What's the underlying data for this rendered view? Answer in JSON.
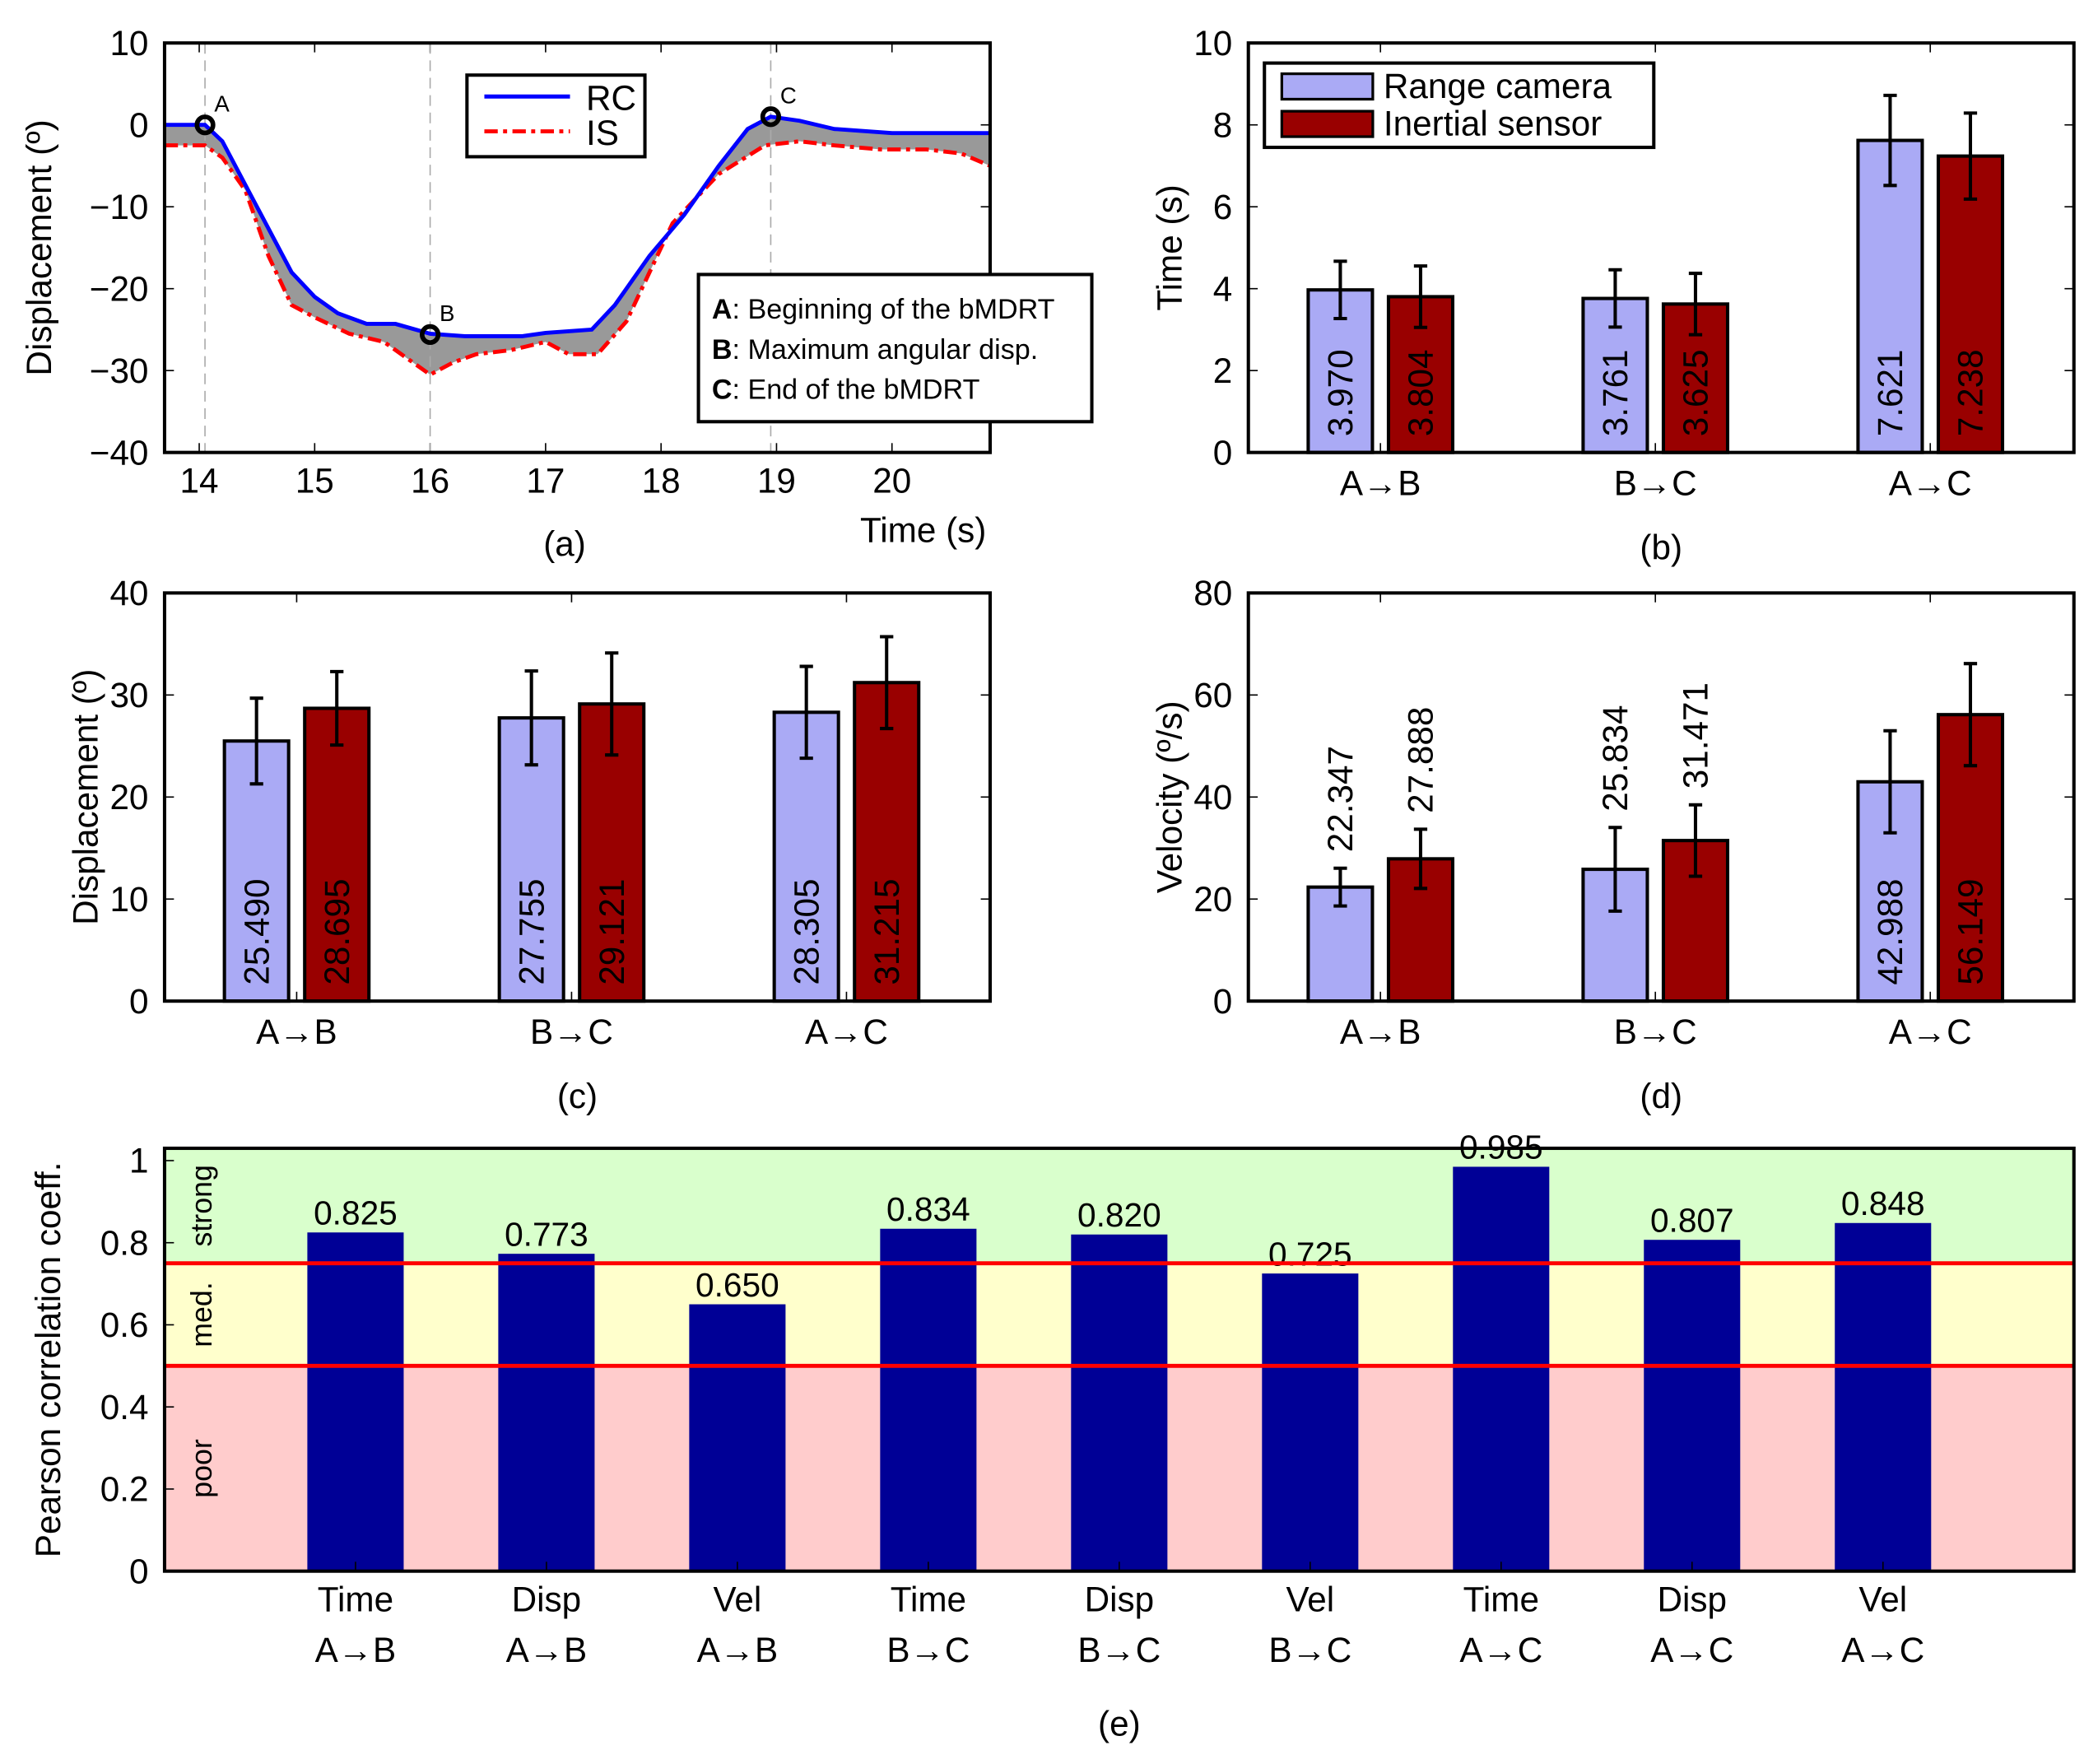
{
  "colors": {
    "rc_line": "#0000ff",
    "is_line": "#ff0000",
    "fill_between": "#999999",
    "rc_bar": "#aaaaf5",
    "is_bar": "#990000",
    "corr_bar": "#000096",
    "strong": "#d9ffcc",
    "medium": "#ffffcc",
    "poor": "#ffcccc",
    "threshold": "#ff0000"
  },
  "chart_data": [
    {
      "id": "a",
      "type": "line",
      "caption": "(a)",
      "xlabel": "Time (s)",
      "ylabel": "Displacement (º)",
      "xlim": [
        13.7,
        20.85
      ],
      "ylim": [
        -40,
        10
      ],
      "xticks": [
        14,
        15,
        16,
        17,
        18,
        19,
        20
      ],
      "yticks": [
        10,
        0,
        -10,
        -20,
        -30,
        -40
      ],
      "legend": {
        "placement": "top-center",
        "entries": [
          "RC",
          "IS"
        ]
      },
      "series": [
        {
          "name": "RC",
          "style": "solid",
          "points": [
            [
              13.7,
              0
            ],
            [
              14.05,
              0
            ],
            [
              14.2,
              -2
            ],
            [
              14.5,
              -10
            ],
            [
              14.8,
              -18
            ],
            [
              15.0,
              -21
            ],
            [
              15.2,
              -23
            ],
            [
              15.45,
              -24.3
            ],
            [
              15.7,
              -24.3
            ],
            [
              16.0,
              -25.5
            ],
            [
              16.3,
              -25.8
            ],
            [
              16.8,
              -25.8
            ],
            [
              17.0,
              -25.4
            ],
            [
              17.4,
              -25
            ],
            [
              17.6,
              -22
            ],
            [
              17.9,
              -16
            ],
            [
              18.2,
              -11
            ],
            [
              18.5,
              -5
            ],
            [
              18.75,
              -0.5
            ],
            [
              18.95,
              1
            ],
            [
              19.2,
              0.5
            ],
            [
              19.5,
              -0.5
            ],
            [
              20.0,
              -1
            ],
            [
              20.85,
              -1
            ]
          ]
        },
        {
          "name": "IS",
          "style": "dashdot",
          "points": [
            [
              13.7,
              -2.5
            ],
            [
              14.05,
              -2.5
            ],
            [
              14.2,
              -4
            ],
            [
              14.4,
              -8
            ],
            [
              14.6,
              -16
            ],
            [
              14.8,
              -22
            ],
            [
              15.0,
              -23.5
            ],
            [
              15.3,
              -25.5
            ],
            [
              15.6,
              -26.5
            ],
            [
              15.85,
              -29
            ],
            [
              16.0,
              -30.5
            ],
            [
              16.2,
              -29
            ],
            [
              16.4,
              -28
            ],
            [
              16.7,
              -27.5
            ],
            [
              17.0,
              -26.5
            ],
            [
              17.2,
              -28
            ],
            [
              17.45,
              -28
            ],
            [
              17.7,
              -24
            ],
            [
              17.9,
              -18
            ],
            [
              18.1,
              -12
            ],
            [
              18.5,
              -6
            ],
            [
              18.9,
              -2.5
            ],
            [
              19.2,
              -2
            ],
            [
              19.5,
              -2.5
            ],
            [
              19.9,
              -3
            ],
            [
              20.3,
              -3
            ],
            [
              20.6,
              -3.5
            ],
            [
              20.85,
              -5
            ]
          ]
        }
      ],
      "markers": [
        {
          "label": "A",
          "x": 14.05,
          "y": 0
        },
        {
          "label": "B",
          "x": 16.0,
          "y": -25.6
        },
        {
          "label": "C",
          "x": 18.95,
          "y": 1
        }
      ],
      "annotations": [
        {
          "key": "A",
          "text": ": Beginning of the bMDRT"
        },
        {
          "key": "B",
          "text": ": Maximum angular disp."
        },
        {
          "key": "C",
          "text": ": End of the bMDRT"
        }
      ]
    },
    {
      "id": "b",
      "type": "bar",
      "caption": "(b)",
      "xlabel": "",
      "ylabel": "Time (s)",
      "ylim": [
        0,
        10
      ],
      "yticks": [
        0,
        2,
        4,
        6,
        8,
        10
      ],
      "categories": [
        "A→B",
        "B→C",
        "A→C"
      ],
      "legend": {
        "placement": "top-left",
        "entries": [
          "Range camera",
          "Inertial sensor"
        ]
      },
      "series": [
        {
          "name": "Range camera",
          "values": [
            3.97,
            3.761,
            7.621
          ],
          "errors": [
            0.7,
            0.7,
            1.1
          ],
          "labels": [
            "3.970",
            "3.761",
            "7.621"
          ],
          "label_inside": [
            true,
            true,
            true
          ]
        },
        {
          "name": "Inertial sensor",
          "values": [
            3.804,
            3.625,
            7.238
          ],
          "errors": [
            0.75,
            0.75,
            1.05
          ],
          "labels": [
            "3.804",
            "3.625",
            "7.238"
          ],
          "label_inside": [
            true,
            true,
            true
          ]
        }
      ]
    },
    {
      "id": "c",
      "type": "bar",
      "caption": "(c)",
      "xlabel": "",
      "ylabel": "Displacement (º)",
      "ylim": [
        0,
        40
      ],
      "yticks": [
        0,
        10,
        20,
        30,
        40
      ],
      "categories": [
        "A→B",
        "B→C",
        "A→C"
      ],
      "series": [
        {
          "name": "Range camera",
          "values": [
            25.49,
            27.755,
            28.305
          ],
          "errors": [
            4.2,
            4.6,
            4.5
          ],
          "labels": [
            "25.490",
            "27.755",
            "28.305"
          ],
          "label_inside": [
            true,
            true,
            true
          ]
        },
        {
          "name": "Inertial sensor",
          "values": [
            28.695,
            29.121,
            31.215
          ],
          "errors": [
            3.6,
            5.0,
            4.5
          ],
          "labels": [
            "28.695",
            "29.121",
            "31.215"
          ],
          "label_inside": [
            true,
            true,
            true
          ]
        }
      ]
    },
    {
      "id": "d",
      "type": "bar",
      "caption": "(d)",
      "xlabel": "",
      "ylabel": "Velocity (º/s)",
      "ylim": [
        0,
        80
      ],
      "yticks": [
        0,
        20,
        40,
        60,
        80
      ],
      "categories": [
        "A→B",
        "B→C",
        "A→C"
      ],
      "series": [
        {
          "name": "Range camera",
          "values": [
            22.347,
            25.834,
            42.988
          ],
          "errors": [
            3.7,
            8.2,
            10
          ],
          "labels": [
            "22.347",
            "25.834",
            "42.988"
          ],
          "label_inside": [
            false,
            false,
            true
          ]
        },
        {
          "name": "Inertial sensor",
          "values": [
            27.888,
            31.471,
            56.149
          ],
          "errors": [
            5.8,
            7,
            10
          ],
          "labels": [
            "27.888",
            "31.471",
            "56.149"
          ],
          "label_inside": [
            false,
            false,
            true
          ]
        }
      ]
    },
    {
      "id": "e",
      "type": "bar",
      "caption": "(e)",
      "xlabel": "",
      "ylabel": "Pearson correlation coeff.",
      "ylim": [
        0,
        1.03
      ],
      "yticks": [
        0,
        0.2,
        0.4,
        0.6,
        0.8,
        1
      ],
      "ytick_labels": [
        "0",
        "0.2",
        "0.4",
        "0.6",
        "0.8",
        "1"
      ],
      "categories": [
        [
          "Time",
          "A→B"
        ],
        [
          "Disp",
          "A→B"
        ],
        [
          "Vel",
          "A→B"
        ],
        [
          "Time",
          "B→C"
        ],
        [
          "Disp",
          "B→C"
        ],
        [
          "Vel",
          "B→C"
        ],
        [
          "Time",
          "A→C"
        ],
        [
          "Disp",
          "A→C"
        ],
        [
          "Vel",
          "A→C"
        ]
      ],
      "values": [
        0.825,
        0.773,
        0.65,
        0.834,
        0.82,
        0.725,
        0.985,
        0.807,
        0.848
      ],
      "labels": [
        "0.825",
        "0.773",
        "0.650",
        "0.834",
        "0.820",
        "0.725",
        "0.985",
        "0.807",
        "0.848"
      ],
      "bands": [
        {
          "name": "poor",
          "from": 0,
          "to": 0.5
        },
        {
          "name": "med.",
          "from": 0.5,
          "to": 0.75
        },
        {
          "name": "strong",
          "from": 0.75,
          "to": 1.03
        }
      ],
      "thresholds": [
        0.5,
        0.75
      ]
    }
  ]
}
